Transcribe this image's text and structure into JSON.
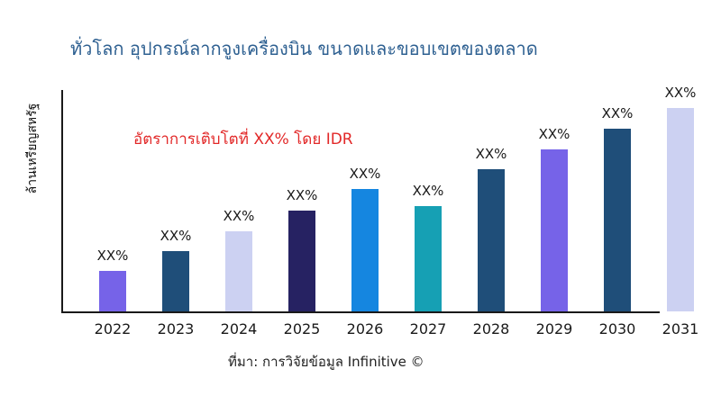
{
  "title": "ทั่วโลก อุปกรณ์ลากจูงเครื่องบิน ขนาดและขอบเขตของตลาด",
  "title_color": "#2e6091",
  "annotation": {
    "text": "อัตราการเติบโตที่ XX% โดย IDR",
    "color": "#e22828"
  },
  "source": "ที่มา: การวิจัยข้อมูล Infinitive ©",
  "chart_data": {
    "type": "bar",
    "title": "ทั่วโลก อุปกรณ์ลากจูงเครื่องบิน ขนาดและขอบเขตของตลาด",
    "xlabel": "",
    "ylabel": "ล้านเหรียญสหรัฐ",
    "categories": [
      "2022",
      "2023",
      "2024",
      "2025",
      "2026",
      "2027",
      "2028",
      "2029",
      "2030",
      "2031"
    ],
    "values": [
      45,
      67,
      89,
      112,
      136,
      117,
      158,
      180,
      203,
      226
    ],
    "values_note": "actual values masked as XX% in the source image; values are relative bar heights in rendered px",
    "bar_labels": [
      "XX%",
      "XX%",
      "XX%",
      "XX%",
      "XX%",
      "XX%",
      "XX%",
      "XX%",
      "XX%",
      "XX%"
    ],
    "bar_colors": [
      "#7663e8",
      "#1f4e79",
      "#ccd1f2",
      "#262262",
      "#1586e0",
      "#16a0b4",
      "#1f4e79",
      "#7663e8",
      "#1f4e79",
      "#ccd1f2"
    ],
    "axis_color": "#1a1a1a",
    "grid": "off",
    "legend": "none",
    "y_ticks": "none"
  }
}
